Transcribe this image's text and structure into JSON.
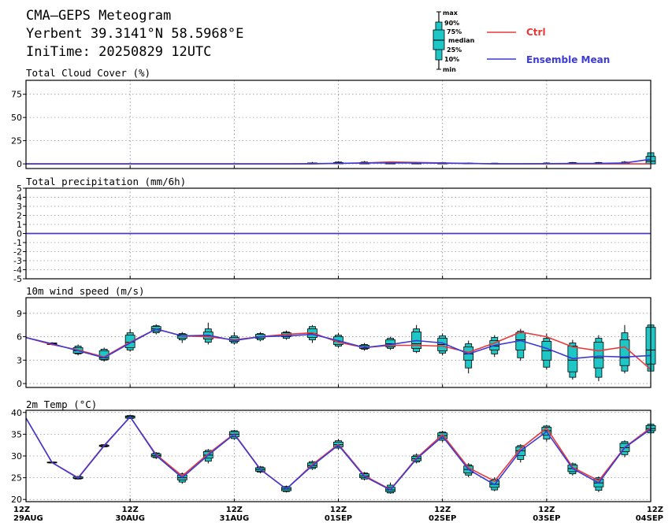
{
  "header": {
    "title": "CMA—GEPS Meteogram",
    "location": "Yerbent 39.3141°N 58.5968°E",
    "init_time": "IniTime: 20250829 12UTC"
  },
  "legend": {
    "box_labels": [
      "max",
      "90%",
      "75%",
      "median",
      "25%",
      "10%",
      "min"
    ],
    "lines": [
      {
        "name": "Ctrl",
        "color": "#e8393a"
      },
      {
        "name": "Ensemble Mean",
        "color": "#3a3ad6"
      }
    ]
  },
  "colors": {
    "box_fill": "#1ec6c6",
    "ctrl": "#e8393a",
    "mean": "#3a3ad6"
  },
  "x_axis": {
    "ticks": [
      {
        "top": "12Z",
        "bottom": "29AUG",
        "t": 0
      },
      {
        "top": "12Z",
        "bottom": "30AUG",
        "t": 24
      },
      {
        "top": "12Z",
        "bottom": "31AUG",
        "t": 48
      },
      {
        "top": "12Z",
        "bottom": "01SEP",
        "t": 72
      },
      {
        "top": "12Z",
        "bottom": "02SEP",
        "t": 96
      },
      {
        "top": "12Z",
        "bottom": "03SEP",
        "t": 120
      },
      {
        "top": "12Z",
        "bottom": "04SEP",
        "t": 144
      }
    ]
  },
  "chart_data": [
    {
      "type": "line",
      "title": "Total Cloud Cover (%)",
      "ylim": [
        -5,
        90
      ],
      "yticks": [
        0,
        25,
        50,
        75
      ],
      "x_hours": [
        0,
        6,
        12,
        18,
        24,
        30,
        36,
        42,
        48,
        54,
        60,
        66,
        72,
        78,
        84,
        90,
        96,
        102,
        108,
        114,
        120,
        126,
        132,
        138,
        144
      ],
      "series": [
        {
          "name": "Ctrl",
          "values": [
            0,
            0,
            0,
            0,
            0,
            0,
            0,
            0,
            0,
            0,
            0,
            0,
            0.5,
            1,
            2,
            1.5,
            1,
            0.5,
            0,
            0,
            0,
            0,
            0,
            0,
            0
          ]
        },
        {
          "name": "Ensemble Mean",
          "values": [
            0,
            0,
            0,
            0,
            0,
            0,
            0,
            0,
            0,
            0,
            0,
            0.3,
            0.6,
            1,
            1,
            1,
            0.8,
            0.4,
            0.2,
            0.2,
            0.3,
            0.5,
            0.5,
            1,
            5
          ]
        }
      ],
      "boxes": [
        {
          "t": 66,
          "min": 0,
          "p10": 0,
          "p25": 0,
          "med": 0,
          "p75": 1,
          "p90": 1,
          "max": 2
        },
        {
          "t": 72,
          "min": 0,
          "p10": 0,
          "p25": 0,
          "med": 0.5,
          "p75": 1.5,
          "p90": 2,
          "max": 3
        },
        {
          "t": 78,
          "min": 0,
          "p10": 0,
          "p25": 0,
          "med": 0.5,
          "p75": 1.5,
          "p90": 2,
          "max": 3
        },
        {
          "t": 84,
          "min": 0,
          "p10": 0,
          "p25": 0,
          "med": 0.5,
          "p75": 1,
          "p90": 1.5,
          "max": 2
        },
        {
          "t": 90,
          "min": 0,
          "p10": 0,
          "p25": 0,
          "med": 0.5,
          "p75": 1,
          "p90": 1.5,
          "max": 2
        },
        {
          "t": 96,
          "min": 0,
          "p10": 0,
          "p25": 0,
          "med": 0.5,
          "p75": 1,
          "p90": 1.5,
          "max": 2
        },
        {
          "t": 102,
          "min": 0,
          "p10": 0,
          "p25": 0,
          "med": 0.3,
          "p75": 0.8,
          "p90": 1,
          "max": 1.5
        },
        {
          "t": 108,
          "min": 0,
          "p10": 0,
          "p25": 0,
          "med": 0.2,
          "p75": 0.5,
          "p90": 0.8,
          "max": 1
        },
        {
          "t": 120,
          "min": 0,
          "p10": 0,
          "p25": 0,
          "med": 0.2,
          "p75": 0.6,
          "p90": 1,
          "max": 1.5
        },
        {
          "t": 126,
          "min": 0,
          "p10": 0,
          "p25": 0,
          "med": 0.3,
          "p75": 1,
          "p90": 1.5,
          "max": 2
        },
        {
          "t": 132,
          "min": 0,
          "p10": 0,
          "p25": 0,
          "med": 0.3,
          "p75": 1,
          "p90": 1.5,
          "max": 2
        },
        {
          "t": 138,
          "min": 0,
          "p10": 0,
          "p25": 0,
          "med": 0.5,
          "p75": 1,
          "p90": 2,
          "max": 3
        },
        {
          "t": 144,
          "min": 0,
          "p10": 0,
          "p25": 0,
          "med": 3,
          "p75": 8,
          "p90": 12,
          "max": 14
        }
      ]
    },
    {
      "type": "line",
      "title": "Total precipitation (mm/6h)",
      "ylim": [
        -5,
        5
      ],
      "yticks": [
        -5,
        -4,
        -3,
        -2,
        -1,
        0,
        1,
        2,
        3,
        4,
        5
      ],
      "x_hours": [
        0,
        144
      ],
      "series": [
        {
          "name": "Ctrl",
          "values": [
            0,
            0
          ]
        },
        {
          "name": "Ensemble Mean",
          "values": [
            0,
            0
          ]
        }
      ],
      "boxes": []
    },
    {
      "type": "line",
      "title": "10m wind speed (m/s)",
      "ylim": [
        -0.5,
        11
      ],
      "yticks": [
        0,
        3,
        6,
        9
      ],
      "x_hours": [
        0,
        6,
        12,
        18,
        24,
        30,
        36,
        42,
        48,
        54,
        60,
        66,
        72,
        78,
        84,
        90,
        96,
        102,
        108,
        114,
        120,
        126,
        132,
        138,
        144
      ],
      "series": [
        {
          "name": "Ctrl",
          "values": [
            5.9,
            5.0,
            4.3,
            3.4,
            5.3,
            7.0,
            6.1,
            6.0,
            5.6,
            6.0,
            6.3,
            6.5,
            5.3,
            4.6,
            4.9,
            4.9,
            4.8,
            4.0,
            5.2,
            6.6,
            6.0,
            4.7,
            4.2,
            4.7,
            1.8
          ]
        },
        {
          "name": "Ensemble Mean",
          "values": [
            5.9,
            5.1,
            4.2,
            3.3,
            5.2,
            7.0,
            6.1,
            6.2,
            5.5,
            6.0,
            6.1,
            6.3,
            5.5,
            4.6,
            5.0,
            5.5,
            5.2,
            3.8,
            4.9,
            5.5,
            4.5,
            3.2,
            3.5,
            3.4,
            3.6
          ]
        }
      ],
      "boxes": [
        {
          "t": 6,
          "min": 4.9,
          "p10": 5.0,
          "p25": 5.0,
          "med": 5.1,
          "p75": 5.2,
          "p90": 5.2,
          "max": 5.3
        },
        {
          "t": 12,
          "min": 3.6,
          "p10": 3.8,
          "p25": 3.9,
          "med": 4.2,
          "p75": 4.6,
          "p90": 4.8,
          "max": 5.0
        },
        {
          "t": 18,
          "min": 2.8,
          "p10": 3.0,
          "p25": 3.1,
          "med": 3.3,
          "p75": 4.2,
          "p90": 4.4,
          "max": 4.6
        },
        {
          "t": 24,
          "min": 4.1,
          "p10": 4.3,
          "p25": 4.6,
          "med": 5.3,
          "p75": 6.2,
          "p90": 6.5,
          "max": 7.0
        },
        {
          "t": 30,
          "min": 6.3,
          "p10": 6.5,
          "p25": 6.7,
          "med": 7.0,
          "p75": 7.3,
          "p90": 7.4,
          "max": 7.6
        },
        {
          "t": 36,
          "min": 5.2,
          "p10": 5.6,
          "p25": 5.8,
          "med": 6.1,
          "p75": 6.3,
          "p90": 6.4,
          "max": 6.6
        },
        {
          "t": 42,
          "min": 5.0,
          "p10": 5.3,
          "p25": 5.7,
          "med": 6.1,
          "p75": 6.6,
          "p90": 7.0,
          "max": 7.8
        },
        {
          "t": 48,
          "min": 5.0,
          "p10": 5.2,
          "p25": 5.4,
          "med": 5.6,
          "p75": 5.9,
          "p90": 6.1,
          "max": 6.6
        },
        {
          "t": 54,
          "min": 5.4,
          "p10": 5.6,
          "p25": 5.8,
          "med": 6.0,
          "p75": 6.3,
          "p90": 6.4,
          "max": 6.6
        },
        {
          "t": 60,
          "min": 5.6,
          "p10": 5.8,
          "p25": 6.0,
          "med": 6.3,
          "p75": 6.5,
          "p90": 6.6,
          "max": 6.8
        },
        {
          "t": 66,
          "min": 5.2,
          "p10": 5.6,
          "p25": 5.9,
          "med": 6.4,
          "p75": 7.0,
          "p90": 7.3,
          "max": 7.5
        },
        {
          "t": 72,
          "min": 4.6,
          "p10": 4.8,
          "p25": 5.0,
          "med": 5.4,
          "p75": 6.0,
          "p90": 6.2,
          "max": 6.5
        },
        {
          "t": 78,
          "min": 4.2,
          "p10": 4.4,
          "p25": 4.5,
          "med": 4.7,
          "p75": 4.9,
          "p90": 5.0,
          "max": 5.2
        },
        {
          "t": 84,
          "min": 4.3,
          "p10": 4.5,
          "p25": 4.7,
          "med": 5.1,
          "p75": 5.6,
          "p90": 5.8,
          "max": 6.0
        },
        {
          "t": 90,
          "min": 3.9,
          "p10": 4.1,
          "p25": 4.5,
          "med": 5.1,
          "p75": 6.6,
          "p90": 7.0,
          "max": 7.5
        },
        {
          "t": 96,
          "min": 3.6,
          "p10": 3.9,
          "p25": 4.2,
          "med": 5.0,
          "p75": 5.8,
          "p90": 6.1,
          "max": 6.4
        },
        {
          "t": 102,
          "min": 1.3,
          "p10": 2.0,
          "p25": 3.0,
          "med": 3.8,
          "p75": 4.7,
          "p90": 5.1,
          "max": 5.5
        },
        {
          "t": 108,
          "min": 3.4,
          "p10": 3.8,
          "p25": 4.3,
          "med": 4.8,
          "p75": 5.5,
          "p90": 5.9,
          "max": 6.2
        },
        {
          "t": 114,
          "min": 2.9,
          "p10": 3.3,
          "p25": 4.3,
          "med": 5.6,
          "p75": 6.5,
          "p90": 6.7,
          "max": 7.0
        },
        {
          "t": 120,
          "min": 1.8,
          "p10": 2.1,
          "p25": 3.0,
          "med": 4.2,
          "p75": 5.4,
          "p90": 5.8,
          "max": 6.4
        },
        {
          "t": 126,
          "min": 0.5,
          "p10": 0.8,
          "p25": 1.5,
          "med": 3.0,
          "p75": 4.8,
          "p90": 5.2,
          "max": 5.6
        },
        {
          "t": 132,
          "min": 0.3,
          "p10": 0.8,
          "p25": 2.0,
          "med": 3.3,
          "p75": 5.3,
          "p90": 5.8,
          "max": 6.2
        },
        {
          "t": 138,
          "min": 1.3,
          "p10": 1.6,
          "p25": 2.3,
          "med": 3.3,
          "p75": 5.6,
          "p90": 6.5,
          "max": 7.5
        },
        {
          "t": 144,
          "min": 1.2,
          "p10": 1.6,
          "p25": 2.5,
          "med": 4.3,
          "p75": 7.2,
          "p90": 7.5,
          "max": 7.8
        }
      ]
    },
    {
      "type": "line",
      "title": "2m Temp (°C)",
      "ylim": [
        19.5,
        40.5
      ],
      "yticks": [
        20,
        25,
        30,
        35,
        40
      ],
      "x_hours": [
        0,
        6,
        12,
        18,
        24,
        30,
        36,
        42,
        48,
        54,
        60,
        66,
        72,
        78,
        84,
        90,
        96,
        102,
        108,
        114,
        120,
        126,
        132,
        138,
        144
      ],
      "series": [
        {
          "name": "Ctrl",
          "values": [
            38.7,
            28.5,
            25.0,
            32.4,
            39.0,
            30.3,
            25.4,
            30.5,
            35.1,
            27.0,
            22.4,
            28.0,
            32.7,
            25.5,
            22.3,
            29.5,
            34.9,
            27.3,
            24.2,
            31.7,
            36.4,
            27.4,
            24.3,
            32.0,
            36.5
          ]
        },
        {
          "name": "Ensemble Mean",
          "values": [
            38.7,
            28.5,
            24.9,
            32.3,
            39.0,
            30.1,
            25.0,
            30.2,
            35.0,
            26.9,
            22.4,
            27.8,
            32.5,
            25.3,
            22.2,
            29.3,
            34.5,
            26.9,
            23.4,
            31.2,
            35.6,
            27.1,
            23.8,
            31.9,
            36.2
          ]
        }
      ],
      "boxes": [
        {
          "t": 6,
          "min": 28.3,
          "p10": 28.4,
          "p25": 28.4,
          "med": 28.5,
          "p75": 28.6,
          "p90": 28.6,
          "max": 28.7
        },
        {
          "t": 12,
          "min": 24.6,
          "p10": 24.7,
          "p25": 24.8,
          "med": 24.9,
          "p75": 25.2,
          "p90": 25.3,
          "max": 25.4
        },
        {
          "t": 18,
          "min": 32.0,
          "p10": 32.1,
          "p25": 32.2,
          "med": 32.3,
          "p75": 32.5,
          "p90": 32.6,
          "max": 32.7
        },
        {
          "t": 24,
          "min": 38.5,
          "p10": 38.6,
          "p25": 38.7,
          "med": 39.0,
          "p75": 39.2,
          "p90": 39.3,
          "max": 39.4
        },
        {
          "t": 30,
          "min": 29.3,
          "p10": 29.6,
          "p25": 29.8,
          "med": 30.1,
          "p75": 30.5,
          "p90": 30.7,
          "max": 30.9
        },
        {
          "t": 36,
          "min": 23.6,
          "p10": 24.0,
          "p25": 24.5,
          "med": 25.0,
          "p75": 25.6,
          "p90": 25.9,
          "max": 26.2
        },
        {
          "t": 42,
          "min": 28.3,
          "p10": 28.8,
          "p25": 29.5,
          "med": 30.2,
          "p75": 31.0,
          "p90": 31.3,
          "max": 31.6
        },
        {
          "t": 48,
          "min": 33.7,
          "p10": 34.0,
          "p25": 34.4,
          "med": 35.0,
          "p75": 35.6,
          "p90": 35.8,
          "max": 36.0
        },
        {
          "t": 54,
          "min": 26.0,
          "p10": 26.3,
          "p25": 26.5,
          "med": 26.9,
          "p75": 27.3,
          "p90": 27.5,
          "max": 27.7
        },
        {
          "t": 60,
          "min": 21.6,
          "p10": 21.8,
          "p25": 22.0,
          "med": 22.4,
          "p75": 22.8,
          "p90": 23.0,
          "max": 23.2
        },
        {
          "t": 66,
          "min": 26.8,
          "p10": 27.1,
          "p25": 27.4,
          "med": 27.8,
          "p75": 28.4,
          "p90": 28.7,
          "max": 29.0
        },
        {
          "t": 72,
          "min": 31.5,
          "p10": 31.8,
          "p25": 32.1,
          "med": 32.6,
          "p75": 33.2,
          "p90": 33.5,
          "max": 33.9
        },
        {
          "t": 78,
          "min": 24.4,
          "p10": 24.7,
          "p25": 25.0,
          "med": 25.4,
          "p75": 25.9,
          "p90": 26.1,
          "max": 26.3
        },
        {
          "t": 84,
          "min": 21.3,
          "p10": 21.5,
          "p25": 21.8,
          "med": 22.2,
          "p75": 22.8,
          "p90": 23.3,
          "max": 23.9
        },
        {
          "t": 90,
          "min": 28.3,
          "p10": 28.6,
          "p25": 28.9,
          "med": 29.4,
          "p75": 29.9,
          "p90": 30.2,
          "max": 30.6
        },
        {
          "t": 96,
          "min": 33.2,
          "p10": 33.6,
          "p25": 34.0,
          "med": 34.7,
          "p75": 35.3,
          "p90": 35.5,
          "max": 35.8
        },
        {
          "t": 102,
          "min": 25.1,
          "p10": 25.6,
          "p25": 26.1,
          "med": 26.9,
          "p75": 27.7,
          "p90": 28.0,
          "max": 28.4
        },
        {
          "t": 108,
          "min": 21.9,
          "p10": 22.2,
          "p25": 22.8,
          "med": 23.5,
          "p75": 24.3,
          "p90": 24.7,
          "max": 25.1
        },
        {
          "t": 114,
          "min": 28.5,
          "p10": 29.2,
          "p25": 30.1,
          "med": 31.2,
          "p75": 32.1,
          "p90": 32.4,
          "max": 32.7
        },
        {
          "t": 120,
          "min": 33.3,
          "p10": 33.9,
          "p25": 34.8,
          "med": 35.8,
          "p75": 36.6,
          "p90": 36.9,
          "max": 37.1
        },
        {
          "t": 126,
          "min": 25.5,
          "p10": 25.9,
          "p25": 26.4,
          "med": 27.1,
          "p75": 27.9,
          "p90": 28.2,
          "max": 28.5
        },
        {
          "t": 132,
          "min": 21.7,
          "p10": 22.1,
          "p25": 22.9,
          "med": 23.8,
          "p75": 24.7,
          "p90": 25.0,
          "max": 25.3
        },
        {
          "t": 138,
          "min": 29.7,
          "p10": 30.3,
          "p25": 31.0,
          "med": 31.9,
          "p75": 32.9,
          "p90": 33.3,
          "max": 33.6
        },
        {
          "t": 144,
          "min": 35.0,
          "p10": 35.3,
          "p25": 35.8,
          "med": 36.3,
          "p75": 37.0,
          "p90": 37.3,
          "max": 37.6
        }
      ]
    }
  ]
}
